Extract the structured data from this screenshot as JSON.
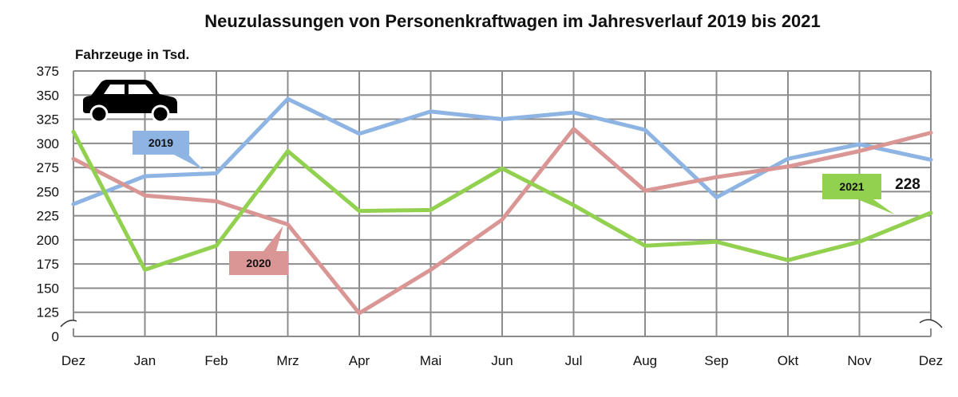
{
  "chart_data": {
    "type": "line",
    "title": "Neuzulassungen von Personenkraftwagen im Jahresverlauf 2019 bis 2021",
    "ylabel": "Fahrzeuge in Tsd.",
    "xlabel": "",
    "categories": [
      "Dez",
      "Jan",
      "Feb",
      "Mrz",
      "Apr",
      "Mai",
      "Jun",
      "Jul",
      "Aug",
      "Sep",
      "Okt",
      "Nov",
      "Dez"
    ],
    "y_ticks": [
      "375",
      "350",
      "325",
      "300",
      "275",
      "250",
      "225",
      "200",
      "175",
      "150",
      "125",
      "0"
    ],
    "ylim": [
      0,
      375
    ],
    "axis_break": "between 0 and 125",
    "grid": true,
    "series": [
      {
        "name": "2019",
        "color": "#8EB4E3",
        "values": [
          237,
          266,
          269,
          346,
          310,
          333,
          325,
          332,
          314,
          244,
          284,
          299,
          283
        ]
      },
      {
        "name": "2020",
        "color": "#D99694",
        "values": [
          284,
          246,
          240,
          216,
          120,
          169,
          221,
          315,
          251,
          265,
          276,
          292,
          311
        ]
      },
      {
        "name": "2021",
        "color": "#92D050",
        "values": [
          312,
          169,
          194,
          292,
          230,
          231,
          274,
          236,
          194,
          198,
          179,
          198,
          228
        ]
      }
    ],
    "end_label": "228"
  },
  "icons": {
    "car": "car-icon"
  }
}
